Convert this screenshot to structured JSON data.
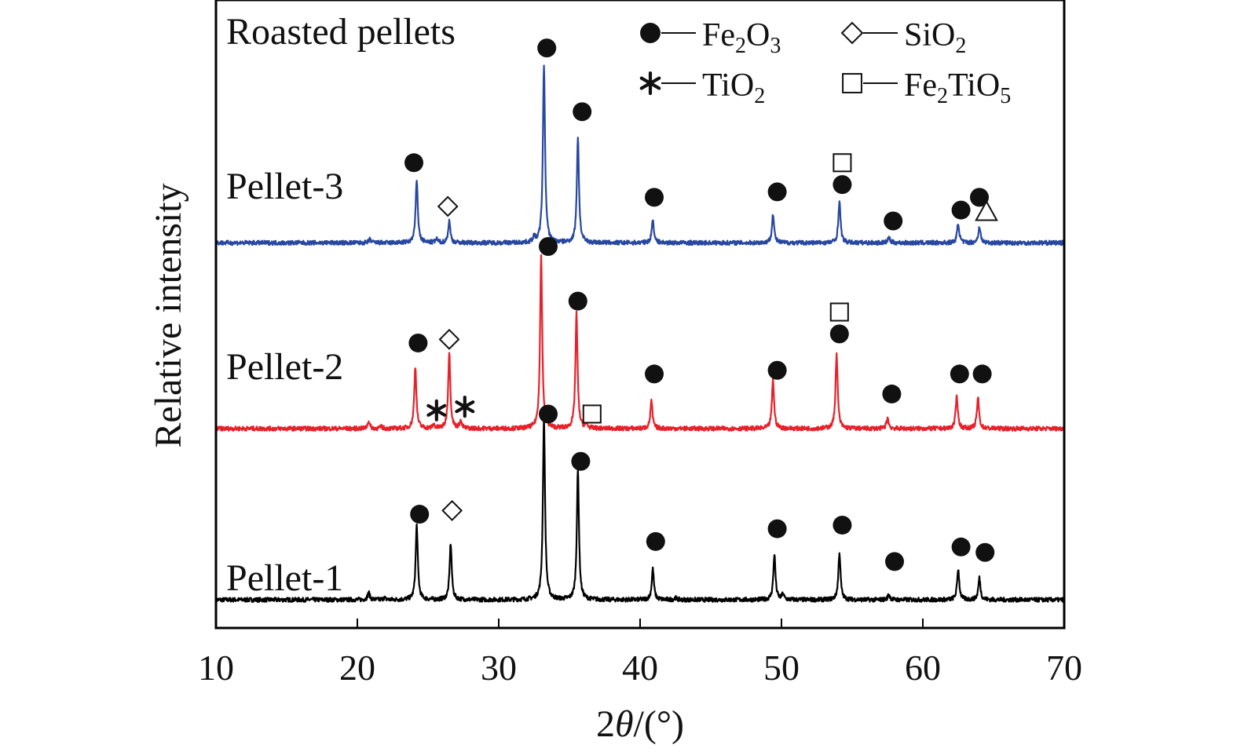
{
  "chart_data": {
    "type": "line",
    "title": "Roasted pellets",
    "xlabel_parts": {
      "pre": "2",
      "italic": "θ",
      "post": "/(°)"
    },
    "ylabel": "Relative intensity",
    "xlim": [
      10,
      70
    ],
    "xticks": [
      10,
      20,
      30,
      40,
      50,
      60,
      70
    ],
    "legend": [
      {
        "symbol": "filled-circle",
        "formula": [
          [
            "Fe",
            ""
          ],
          [
            "2",
            "sub"
          ],
          [
            "O",
            ""
          ],
          [
            "3",
            "sub"
          ]
        ]
      },
      {
        "symbol": "open-diamond",
        "formula": [
          [
            "SiO",
            ""
          ],
          [
            "2",
            "sub"
          ]
        ]
      },
      {
        "symbol": "asterisk",
        "formula": [
          [
            "TiO",
            ""
          ],
          [
            "2",
            "sub"
          ]
        ]
      },
      {
        "symbol": "open-square",
        "formula": [
          [
            "Fe",
            ""
          ],
          [
            "2",
            "sub"
          ],
          [
            "TiO",
            ""
          ],
          [
            "5",
            "sub"
          ]
        ]
      }
    ],
    "series": [
      {
        "name": "Pellet-1",
        "color": "#000000",
        "baseline": 0.06,
        "peaks": [
          [
            20.8,
            0.04
          ],
          [
            21.9,
            0.01
          ],
          [
            24.2,
            0.41
          ],
          [
            26.6,
            0.31
          ],
          [
            33.2,
            1.0
          ],
          [
            35.6,
            0.71
          ],
          [
            40.9,
            0.17
          ],
          [
            42.5,
            0.01
          ],
          [
            49.5,
            0.25
          ],
          [
            50.1,
            0.03
          ],
          [
            54.1,
            0.26
          ],
          [
            57.6,
            0.03
          ],
          [
            62.5,
            0.17
          ],
          [
            64.0,
            0.12
          ]
        ],
        "annotations": [
          {
            "symbol": "filled-circle",
            "x": 24.4,
            "y": 0.53
          },
          {
            "symbol": "open-diamond",
            "x": 26.7,
            "y": 0.55
          },
          {
            "symbol": "filled-circle",
            "x": 33.5,
            "y": 1.08
          },
          {
            "symbol": "filled-circle",
            "x": 35.8,
            "y": 0.82
          },
          {
            "symbol": "filled-circle",
            "x": 41.1,
            "y": 0.38
          },
          {
            "symbol": "filled-circle",
            "x": 49.7,
            "y": 0.45
          },
          {
            "symbol": "filled-circle",
            "x": 54.3,
            "y": 0.47
          },
          {
            "symbol": "filled-circle",
            "x": 58.0,
            "y": 0.27
          },
          {
            "symbol": "filled-circle",
            "x": 62.7,
            "y": 0.35
          },
          {
            "symbol": "filled-circle",
            "x": 64.4,
            "y": 0.32
          }
        ]
      },
      {
        "name": "Pellet-2",
        "color": "#e8202a",
        "baseline": 1.0,
        "peaks": [
          [
            20.8,
            0.04
          ],
          [
            21.7,
            0.01
          ],
          [
            24.1,
            0.34
          ],
          [
            25.4,
            0.02
          ],
          [
            26.5,
            0.42
          ],
          [
            27.3,
            0.04
          ],
          [
            33.0,
            0.95
          ],
          [
            35.5,
            0.63
          ],
          [
            36.2,
            0.02
          ],
          [
            40.8,
            0.15
          ],
          [
            49.4,
            0.27
          ],
          [
            53.9,
            0.41
          ],
          [
            57.5,
            0.06
          ],
          [
            62.4,
            0.18
          ],
          [
            63.9,
            0.17
          ]
        ],
        "annotations": [
          {
            "symbol": "filled-circle",
            "x": 24.3,
            "y": 1.47
          },
          {
            "symbol": "open-diamond",
            "x": 26.5,
            "y": 1.49
          },
          {
            "symbol": "asterisk",
            "x": 25.6,
            "y": 1.1
          },
          {
            "symbol": "asterisk",
            "x": 27.6,
            "y": 1.12
          },
          {
            "symbol": "filled-circle",
            "x": 33.5,
            "y": 2.0
          },
          {
            "symbol": "filled-circle",
            "x": 35.6,
            "y": 1.7
          },
          {
            "symbol": "open-square",
            "x": 36.6,
            "y": 1.08
          },
          {
            "symbol": "filled-circle",
            "x": 41.0,
            "y": 1.3
          },
          {
            "symbol": "filled-circle",
            "x": 49.7,
            "y": 1.32
          },
          {
            "symbol": "filled-circle",
            "x": 54.1,
            "y": 1.52
          },
          {
            "symbol": "open-square",
            "x": 54.1,
            "y": 1.64
          },
          {
            "symbol": "filled-circle",
            "x": 57.8,
            "y": 1.19
          },
          {
            "symbol": "filled-circle",
            "x": 62.6,
            "y": 1.3
          },
          {
            "symbol": "filled-circle",
            "x": 64.2,
            "y": 1.3
          }
        ]
      },
      {
        "name": "Pellet-3",
        "color": "#2847a0",
        "baseline": 2.02,
        "peaks": [
          [
            20.9,
            0.02
          ],
          [
            24.2,
            0.35
          ],
          [
            25.6,
            0.02
          ],
          [
            26.5,
            0.12
          ],
          [
            32.5,
            0.03
          ],
          [
            33.2,
            0.98
          ],
          [
            35.6,
            0.58
          ],
          [
            40.9,
            0.13
          ],
          [
            49.4,
            0.16
          ],
          [
            54.1,
            0.23
          ],
          [
            57.6,
            0.03
          ],
          [
            62.5,
            0.11
          ],
          [
            64.0,
            0.09
          ]
        ],
        "annotations": [
          {
            "symbol": "filled-circle",
            "x": 24.0,
            "y": 2.46
          },
          {
            "symbol": "open-diamond",
            "x": 26.4,
            "y": 2.22
          },
          {
            "symbol": "filled-circle",
            "x": 33.4,
            "y": 3.09
          },
          {
            "symbol": "filled-circle",
            "x": 35.9,
            "y": 2.74
          },
          {
            "symbol": "filled-circle",
            "x": 41.0,
            "y": 2.27
          },
          {
            "symbol": "filled-circle",
            "x": 49.7,
            "y": 2.3
          },
          {
            "symbol": "filled-circle",
            "x": 54.3,
            "y": 2.34
          },
          {
            "symbol": "open-square",
            "x": 54.3,
            "y": 2.46
          },
          {
            "symbol": "filled-circle",
            "x": 57.9,
            "y": 2.14
          },
          {
            "symbol": "filled-circle",
            "x": 62.7,
            "y": 2.2
          },
          {
            "symbol": "filled-circle",
            "x": 64.0,
            "y": 2.27
          },
          {
            "symbol": "open-triangle",
            "x": 64.5,
            "y": 2.19
          }
        ]
      }
    ]
  }
}
